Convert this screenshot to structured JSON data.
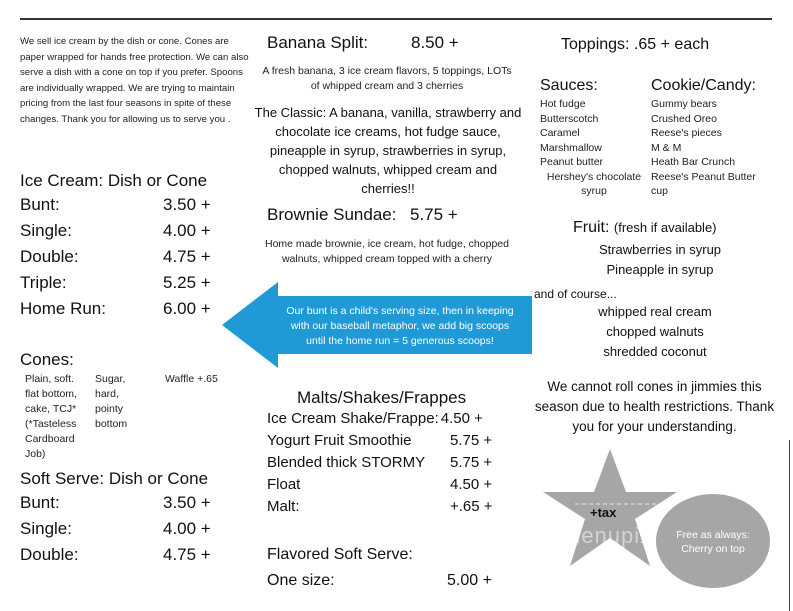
{
  "intro": "We sell ice cream by the dish or cone.  Cones are paper wrapped for hands free protection.  We can also serve a dish with a cone on top if you prefer. Spoons are individually wrapped.  We are trying to maintain pricing from the last four seasons in spite of these changes.  Thank you for allowing us to serve you .",
  "ice_cream": {
    "title": "Ice Cream: Dish or Cone",
    "items": [
      {
        "name": "Bunt:",
        "price": "3.50 +"
      },
      {
        "name": "Single:",
        "price": "4.00 +"
      },
      {
        "name": "Double:",
        "price": "4.75 +"
      },
      {
        "name": "Triple:",
        "price": "5.25 +"
      },
      {
        "name": "Home Run:",
        "price": "6.00 +"
      }
    ]
  },
  "cones": {
    "title": "Cones:",
    "col1": "Plain, soft. flat bottom, cake, TCJ* (*Tasteless Cardboard Job)",
    "col2": "Sugar, hard, pointy bottom",
    "col3": "Waffle +.65"
  },
  "soft_serve": {
    "title": "Soft Serve: Dish or Cone",
    "items": [
      {
        "name": "Bunt:",
        "price": "3.50 +"
      },
      {
        "name": "Single:",
        "price": "4.00 +"
      },
      {
        "name": "Double:",
        "price": "4.75 +"
      }
    ]
  },
  "banana_split": {
    "name": "Banana Split:",
    "price": "8.50 +",
    "desc": "A fresh banana, 3 ice cream flavors, 5 toppings, LOTs of whipped cream and 3 cherries",
    "classic": "The Classic: A banana, vanilla, strawberry and chocolate ice creams, hot fudge sauce, pineapple in syrup, strawberries in syrup, chopped walnuts, whipped cream and cherries!!"
  },
  "brownie": {
    "name": "Brownie Sundae:",
    "price": "5.75 +",
    "desc": "Home made brownie, ice cream, hot fudge, chopped walnuts, whipped cream topped with a cherry"
  },
  "arrow_note": "Our bunt is a child's serving size, then in keeping with our  baseball metaphor,  we add big scoops until the home run = 5 generous scoops!",
  "malts": {
    "title": "Malts/Shakes/Frappes",
    "items": [
      {
        "name": "Ice Cream Shake/Frappe:",
        "price": "4.50 +"
      },
      {
        "name": "Yogurt Fruit Smoothie",
        "price": "5.75 +"
      },
      {
        "name": "Blended thick STORMY",
        "price": "5.75 +"
      },
      {
        "name": "Float",
        "price": "4.50 +"
      },
      {
        "name": "Malt:",
        "price": "+.65 +"
      }
    ]
  },
  "flavored": {
    "title": "Flavored Soft Serve:",
    "name": "One size:",
    "price": "5.00 +"
  },
  "toppings": {
    "title": "Toppings: .65 + each",
    "sauces": {
      "title": "Sauces:",
      "items": [
        "Hot fudge",
        "Butterscotch",
        "Caramel",
        "Marshmallow",
        "Peanut butter",
        "Hershey's chocolate syrup"
      ]
    },
    "candy": {
      "title": "Cookie/Candy:",
      "items": [
        "Gummy bears",
        "Crushed Oreo",
        "Reese's pieces",
        "M & M",
        "Heath Bar Crunch",
        "Reese's Peanut Butter cup"
      ]
    },
    "fruit_title": "Fruit:",
    "fruit_note": "(fresh if available)",
    "fruit": [
      "Strawberries in syrup",
      "Pineapple in syrup"
    ],
    "of_course": "and of course...",
    "extras": [
      "whipped real cream",
      "chopped walnuts",
      "shredded coconut"
    ]
  },
  "notice": "We cannot roll cones in jimmies this season due to health restrictions. Thank you for your understanding.",
  "star_text": "+tax",
  "circle_text": "Free as always: Cherry on top",
  "watermark": "menupix",
  "colors": {
    "arrow": "#1f9ad7",
    "shape_gray": "#a6a6a6"
  }
}
